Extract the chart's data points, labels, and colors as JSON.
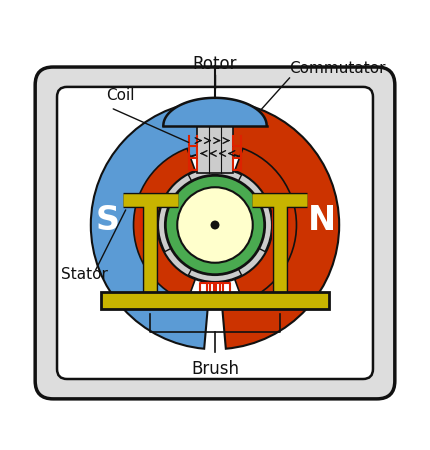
{
  "labels": {
    "rotor": "Rotor",
    "coil": "Coil",
    "commutator": "Commutator",
    "stator": "Stator",
    "brush": "Brush",
    "S": "S",
    "N": "N"
  },
  "colors": {
    "blue_magnet": "#5b9bd5",
    "red_magnet": "#cc3300",
    "yellow_green": "#c8b400",
    "green_ring": "#4aaa50",
    "light_yellow": "#ffffcc",
    "gray": "#aaaaaa",
    "light_gray": "#cccccc",
    "dark": "#111111",
    "white": "#ffffff",
    "red_coil": "#dd2200",
    "outer_shell": "#dddddd"
  },
  "figsize": [
    4.3,
    4.5
  ],
  "dpi": 100
}
